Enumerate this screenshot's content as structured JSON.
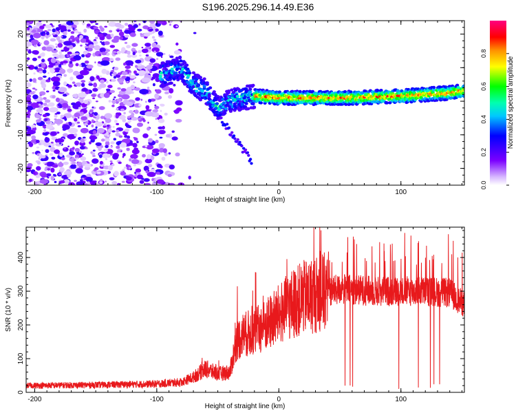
{
  "title": "S196.2025.296.14.49.E36",
  "chart_data": [
    {
      "type": "heatmap",
      "title": "S196.2025.296.14.49.E36",
      "xlabel": "Height of straight line (km)",
      "ylabel": "Frequency (Hz)",
      "xlim": [
        -207,
        152
      ],
      "ylim": [
        -25,
        24
      ],
      "xticks": [
        -200,
        -100,
        0,
        100
      ],
      "yticks": [
        20,
        10,
        0,
        -10,
        -20
      ],
      "colorbar": {
        "label": "Normalized spectral amplitude",
        "range": [
          0,
          1
        ],
        "ticks": [
          0.0,
          0.2,
          0.4,
          0.6,
          0.8
        ]
      },
      "ridge": {
        "description": "main spectral ridge frequency vs height",
        "x": [
          -95,
          -85,
          -80,
          -70,
          -60,
          -50,
          -40,
          -30,
          -20,
          0,
          20,
          40,
          60,
          80,
          100,
          120,
          140,
          150
        ],
        "y": [
          8,
          9,
          10,
          5,
          3,
          -2,
          0,
          1,
          1.5,
          1,
          1,
          1,
          1,
          1.3,
          1.5,
          2,
          2.5,
          3
        ]
      }
    },
    {
      "type": "line",
      "xlabel": "Height of straight line (km)",
      "ylabel": "SNR (10 * v/v)",
      "xlim": [
        -207,
        152
      ],
      "ylim": [
        0,
        490
      ],
      "xticks": [
        -200,
        -100,
        0,
        100
      ],
      "yticks": [
        0,
        100,
        200,
        300,
        400
      ],
      "series": [
        {
          "name": "SNR",
          "color": "#e8191c",
          "envelope_x": [
            -207,
            -150,
            -100,
            -80,
            -70,
            -60,
            -50,
            -40,
            -35,
            -30,
            -20,
            -10,
            0,
            10,
            20,
            30,
            40,
            50,
            60,
            80,
            100,
            120,
            140,
            152
          ],
          "envelope_y": [
            20,
            22,
            25,
            30,
            45,
            70,
            55,
            60,
            150,
            170,
            180,
            200,
            230,
            260,
            280,
            290,
            300,
            305,
            305,
            300,
            300,
            300,
            295,
            260
          ]
        }
      ]
    }
  ]
}
